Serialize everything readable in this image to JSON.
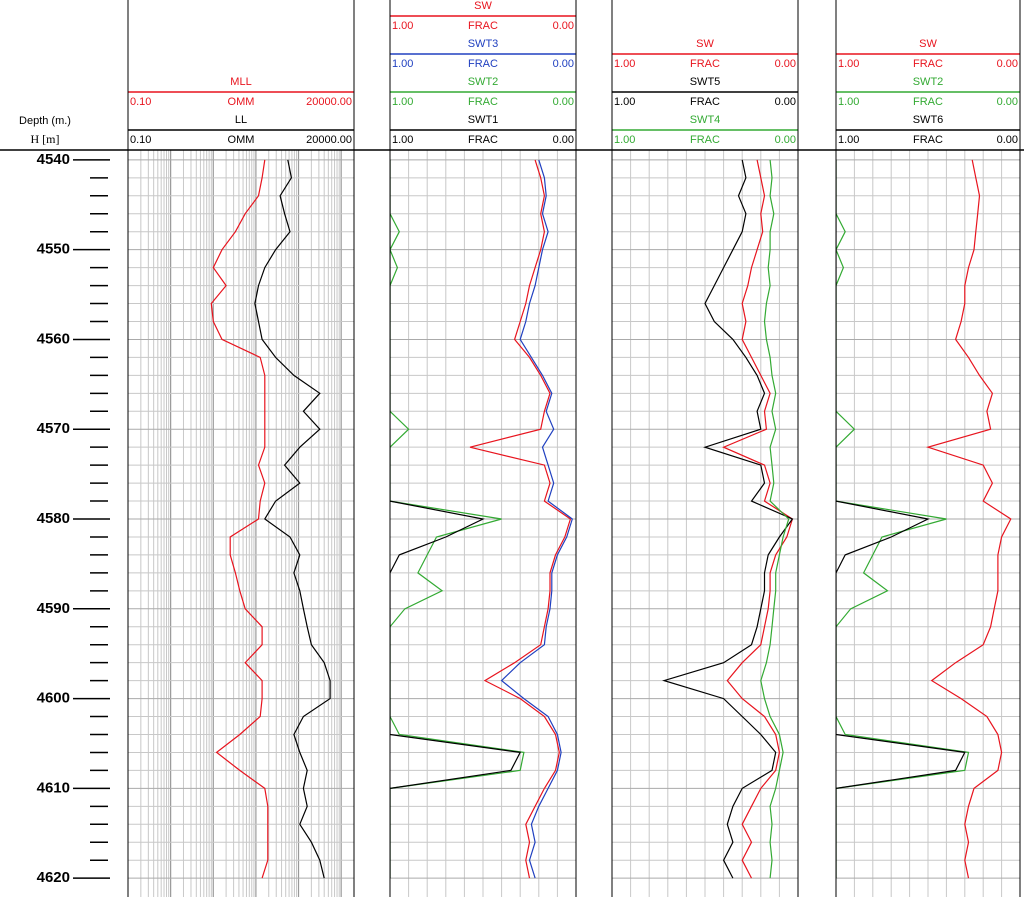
{
  "chart_data": {
    "type": "well-log",
    "depth_title": "Depth (m.)",
    "depth_unit": "H [m]",
    "ylim": [
      4538.9,
      4622.1
    ],
    "yticks": [
      4540,
      4550,
      4560,
      4570,
      4580,
      4590,
      4600,
      4610,
      4620
    ],
    "yminor": [
      4542,
      4544,
      4546,
      4548,
      4552,
      4554,
      4556,
      4558,
      4562,
      4564,
      4566,
      4568,
      4572,
      4574,
      4576,
      4578,
      4582,
      4584,
      4586,
      4588,
      4592,
      4594,
      4596,
      4598,
      4602,
      4604,
      4606,
      4608,
      4612,
      4614,
      4616,
      4618
    ],
    "grid": true,
    "depth": [
      4540,
      4542,
      4544,
      4546,
      4548,
      4550,
      4552,
      4554,
      4556,
      4558,
      4560,
      4562,
      4564,
      4566,
      4568,
      4570,
      4572,
      4574,
      4576,
      4578,
      4580,
      4582,
      4584,
      4586,
      4588,
      4590,
      4592,
      4594,
      4596,
      4598,
      4600,
      4602,
      4604,
      4606,
      4608,
      4610,
      4612,
      4614,
      4616,
      4618,
      4620
    ],
    "tracks": [
      {
        "log": true,
        "series": [
          {
            "name": "MLL",
            "color": "#e8141e",
            "unit": "OMM",
            "scale": [
              {
                "value": 0.1,
                "label": "0.10"
              },
              {
                "value": 20000,
                "label": "20000.00"
              }
            ],
            "values": [
              162,
              140,
              115,
              56,
              33,
              16,
              10,
              20,
              9,
              10,
              16,
              126,
              162,
              162,
              162,
              162,
              162,
              115,
              162,
              126,
              115,
              25,
              25,
              33,
              42,
              56,
              140,
              140,
              56,
              140,
              140,
              126,
              42,
              12,
              42,
              162,
              190,
              190,
              190,
              190,
              140
            ]
          },
          {
            "name": "LL",
            "color": "#000000",
            "unit": "OMM",
            "scale": [
              {
                "value": 0.1,
                "label": "0.10"
              },
              {
                "value": 20000,
                "label": "20000.00"
              }
            ],
            "values": [
              560,
              680,
              370,
              470,
              630,
              290,
              162,
              115,
              95,
              115,
              140,
              290,
              780,
              3160,
              1300,
              3160,
              1070,
              470,
              1070,
              290,
              162,
              630,
              1070,
              780,
              1070,
              1300,
              1600,
              2000,
              4000,
              5500,
              5500,
              1300,
              780,
              1070,
              1600,
              1300,
              1600,
              1070,
              2000,
              3160,
              4000
            ]
          }
        ]
      },
      {
        "log": false,
        "series": [
          {
            "name": "SW",
            "color": "#e8141e",
            "unit": "FRAC",
            "scale": [
              {
                "value": 1,
                "label": "1.00"
              },
              {
                "value": 0,
                "label": "0.00"
              }
            ],
            "values": [
              0.22,
              0.19,
              0.17,
              0.19,
              0.17,
              0.19,
              0.22,
              0.25,
              0.27,
              0.3,
              0.33,
              0.25,
              0.19,
              0.14,
              0.17,
              0.19,
              0.57,
              0.17,
              0.14,
              0.17,
              0.03,
              0.06,
              0.11,
              0.14,
              0.14,
              0.15,
              0.17,
              0.19,
              0.33,
              0.49,
              0.3,
              0.17,
              0.11,
              0.09,
              0.11,
              0.17,
              0.22,
              0.27,
              0.25,
              0.27,
              0.25
            ]
          },
          {
            "name": "SWT3",
            "color": "#2040c0",
            "unit": "FRAC",
            "scale": [
              {
                "value": 1,
                "label": "1.00"
              },
              {
                "value": 0,
                "label": "0.00"
              }
            ],
            "values": [
              0.2,
              0.17,
              0.16,
              0.18,
              0.15,
              0.18,
              0.2,
              0.22,
              0.25,
              0.27,
              0.3,
              0.24,
              0.18,
              0.13,
              0.16,
              0.12,
              0.18,
              0.15,
              0.12,
              0.15,
              0.02,
              0.05,
              0.1,
              0.13,
              0.13,
              0.14,
              0.16,
              0.17,
              0.3,
              0.4,
              0.28,
              0.15,
              0.1,
              0.08,
              0.1,
              0.15,
              0.2,
              0.24,
              0.22,
              0.25,
              0.22
            ]
          },
          {
            "name": "SWT2",
            "color": "#33aa33",
            "unit": "FRAC",
            "scale": [
              {
                "value": 1,
                "label": "1.00"
              },
              {
                "value": 0,
                "label": "0.00"
              }
            ],
            "values": [
              1,
              1,
              1,
              1,
              0.95,
              1,
              0.96,
              1,
              1,
              1,
              1,
              1,
              1,
              1,
              1,
              0.9,
              1,
              1,
              1,
              1,
              0.4,
              0.75,
              0.8,
              0.85,
              0.72,
              0.92,
              1,
              1,
              1,
              1,
              1,
              1,
              0.95,
              0.28,
              0.3,
              1,
              1,
              1,
              1,
              1,
              1
            ]
          },
          {
            "name": "SWT1",
            "color": "#000000",
            "unit": "FRAC",
            "scale": [
              {
                "value": 1,
                "label": "1.00"
              },
              {
                "value": 0,
                "label": "0.00"
              }
            ],
            "values": [
              1,
              1,
              1,
              1,
              1,
              1,
              1,
              1,
              1,
              1,
              1,
              1,
              1,
              1,
              1,
              1,
              1,
              1,
              1,
              1,
              0.5,
              0.7,
              0.95,
              1,
              1,
              1,
              1,
              1,
              1,
              1,
              1,
              1,
              1,
              0.3,
              0.35,
              1,
              1,
              1,
              1,
              1,
              1
            ]
          }
        ]
      },
      {
        "log": false,
        "series": [
          {
            "name": "SW",
            "color": "#e8141e",
            "unit": "FRAC",
            "scale": [
              {
                "value": 1,
                "label": "1.00"
              },
              {
                "value": 0,
                "label": "0.00"
              }
            ],
            "values": [
              0.22,
              0.2,
              0.18,
              0.2,
              0.19,
              0.22,
              0.25,
              0.27,
              0.3,
              0.28,
              0.3,
              0.25,
              0.2,
              0.15,
              0.18,
              0.17,
              0.4,
              0.18,
              0.15,
              0.18,
              0.03,
              0.06,
              0.12,
              0.15,
              0.15,
              0.16,
              0.18,
              0.2,
              0.3,
              0.38,
              0.3,
              0.18,
              0.12,
              0.1,
              0.12,
              0.2,
              0.25,
              0.3,
              0.25,
              0.3,
              0.25
            ]
          },
          {
            "name": "SWT5",
            "color": "#000000",
            "unit": "FRAC",
            "scale": [
              {
                "value": 1,
                "label": "1.00"
              },
              {
                "value": 0,
                "label": "0.00"
              }
            ],
            "values": [
              0.3,
              0.28,
              0.32,
              0.28,
              0.3,
              0.35,
              0.4,
              0.45,
              0.5,
              0.45,
              0.35,
              0.28,
              0.22,
              0.18,
              0.22,
              0.2,
              0.5,
              0.2,
              0.18,
              0.25,
              0.03,
              0.1,
              0.16,
              0.18,
              0.18,
              0.2,
              0.22,
              0.25,
              0.4,
              0.72,
              0.4,
              0.3,
              0.2,
              0.12,
              0.14,
              0.3,
              0.35,
              0.38,
              0.35,
              0.4,
              0.35
            ]
          },
          {
            "name": "SWT4",
            "color": "#33aa33",
            "unit": "FRAC",
            "scale": [
              {
                "value": 1,
                "label": "1.00"
              },
              {
                "value": 0,
                "label": "0.00"
              }
            ],
            "values": [
              0.15,
              0.14,
              0.15,
              0.13,
              0.15,
              0.15,
              0.16,
              0.15,
              0.17,
              0.18,
              0.17,
              0.15,
              0.14,
              0.12,
              0.14,
              0.12,
              0.15,
              0.14,
              0.13,
              0.15,
              0.05,
              0.08,
              0.1,
              0.12,
              0.12,
              0.13,
              0.14,
              0.15,
              0.17,
              0.2,
              0.18,
              0.15,
              0.1,
              0.08,
              0.1,
              0.12,
              0.15,
              0.14,
              0.15,
              0.14,
              0.15
            ]
          }
        ]
      },
      {
        "log": false,
        "series": [
          {
            "name": "SW",
            "color": "#e8141e",
            "unit": "FRAC",
            "scale": [
              {
                "value": 1,
                "label": "1.00"
              },
              {
                "value": 0,
                "label": "0.00"
              }
            ],
            "values": [
              0.26,
              0.24,
              0.22,
              0.23,
              0.24,
              0.25,
              0.28,
              0.3,
              0.3,
              0.32,
              0.35,
              0.28,
              0.22,
              0.15,
              0.18,
              0.16,
              0.5,
              0.2,
              0.15,
              0.2,
              0.05,
              0.1,
              0.12,
              0.12,
              0.12,
              0.14,
              0.16,
              0.2,
              0.35,
              0.48,
              0.32,
              0.18,
              0.12,
              0.1,
              0.12,
              0.25,
              0.28,
              0.3,
              0.28,
              0.3,
              0.28
            ]
          },
          {
            "name": "SWT2",
            "color": "#33aa33",
            "unit": "FRAC",
            "scale": [
              {
                "value": 1,
                "label": "1.00"
              },
              {
                "value": 0,
                "label": "0.00"
              }
            ],
            "values": [
              1,
              1,
              1,
              1,
              0.95,
              1,
              0.96,
              1,
              1,
              1,
              1,
              1,
              1,
              1,
              1,
              0.9,
              1,
              1,
              1,
              1,
              0.4,
              0.75,
              0.8,
              0.85,
              0.72,
              0.92,
              1,
              1,
              1,
              1,
              1,
              1,
              0.95,
              0.28,
              0.3,
              1,
              1,
              1,
              1,
              1,
              1
            ]
          },
          {
            "name": "SWT6",
            "color": "#000000",
            "unit": "FRAC",
            "scale": [
              {
                "value": 1,
                "label": "1.00"
              },
              {
                "value": 0,
                "label": "0.00"
              }
            ],
            "values": [
              1,
              1,
              1,
              1,
              1,
              1,
              1,
              1,
              1,
              1,
              1,
              1,
              1,
              1,
              1,
              1,
              1,
              1,
              1,
              1,
              0.5,
              0.7,
              0.95,
              1,
              1,
              1,
              1,
              1,
              1,
              1,
              1,
              1,
              1,
              0.3,
              0.35,
              1,
              1,
              1,
              1,
              1,
              1
            ]
          }
        ]
      }
    ]
  }
}
